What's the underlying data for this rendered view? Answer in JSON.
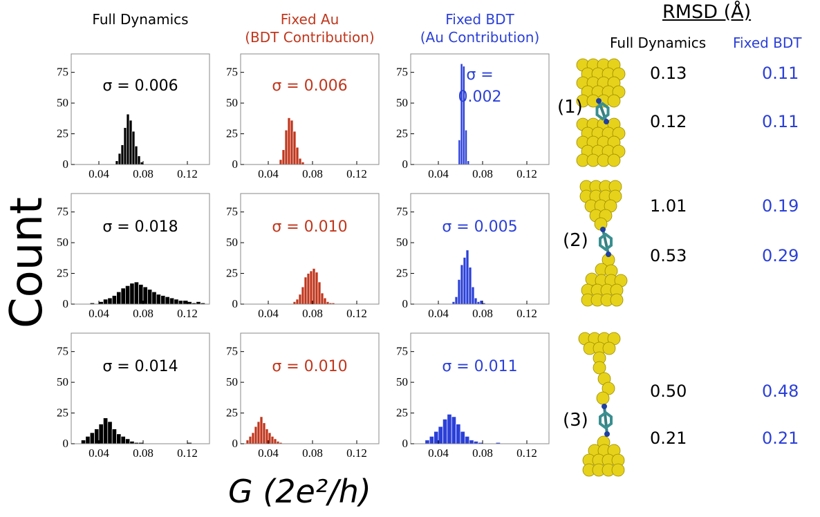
{
  "column_titles": [
    [
      "Full Dynamics"
    ],
    [
      "Fixed Au",
      "(BDT Contribution)"
    ],
    [
      "Fixed BDT",
      "(Au Contribution)"
    ]
  ],
  "y_label": "Count",
  "x_label": "G (2e²/h)",
  "rmsd": {
    "title": "RMSD (Å)",
    "columns": [
      "Full Dynamics",
      "Fixed BDT"
    ],
    "rows": [
      {
        "label": "(1)",
        "values": [
          [
            "0.13",
            "0.11"
          ],
          [
            "0.12",
            "0.11"
          ]
        ]
      },
      {
        "label": "(2)",
        "values": [
          [
            "1.01",
            "0.19"
          ],
          [
            "0.53",
            "0.29"
          ]
        ]
      },
      {
        "label": "(3)",
        "values": [
          [
            "0.50",
            "0.48"
          ],
          [
            "0.21",
            "0.21"
          ]
        ]
      }
    ]
  },
  "chart_data": [
    {
      "type": "histogram",
      "color": "#000000",
      "annotation": "σ = 0.006",
      "xlim": [
        0.015,
        0.14
      ],
      "ylim": [
        0,
        90
      ],
      "xticks": [
        0.04,
        0.08,
        0.12
      ],
      "yticks": [
        0,
        25,
        50,
        75
      ],
      "bins": [
        0.055,
        0.0575,
        0.06,
        0.0625,
        0.065,
        0.0675,
        0.07,
        0.0725,
        0.075,
        0.0775,
        0.08
      ],
      "values": [
        3,
        9,
        16,
        30,
        41,
        36,
        27,
        15,
        7,
        2
      ]
    },
    {
      "type": "histogram",
      "color": "#c0361c",
      "annotation": "σ = 0.006",
      "xlim": [
        0.015,
        0.14
      ],
      "ylim": [
        0,
        90
      ],
      "xticks": [
        0.04,
        0.08,
        0.12
      ],
      "yticks": [
        0,
        25,
        50,
        75
      ],
      "bins": [
        0.05,
        0.0525,
        0.055,
        0.0575,
        0.06,
        0.0625,
        0.065,
        0.0675,
        0.07,
        0.0725
      ],
      "values": [
        4,
        12,
        28,
        38,
        36,
        27,
        14,
        5,
        2
      ]
    },
    {
      "type": "histogram",
      "color": "#2b40d8",
      "annotation": "σ = 0.002",
      "xlim": [
        0.015,
        0.14
      ],
      "ylim": [
        0,
        90
      ],
      "xticks": [
        0.04,
        0.08,
        0.12
      ],
      "yticks": [
        0,
        25,
        50,
        75
      ],
      "bins": [
        0.058,
        0.06,
        0.062,
        0.064,
        0.066,
        0.068
      ],
      "values": [
        20,
        82,
        80,
        28,
        3
      ]
    },
    {
      "type": "histogram",
      "color": "#000000",
      "annotation": "σ = 0.018",
      "xlim": [
        0.015,
        0.14
      ],
      "ylim": [
        0,
        90
      ],
      "xticks": [
        0.04,
        0.08,
        0.12
      ],
      "yticks": [
        0,
        25,
        50,
        75
      ],
      "bins": [
        0.032,
        0.036,
        0.04,
        0.044,
        0.048,
        0.052,
        0.056,
        0.06,
        0.064,
        0.068,
        0.072,
        0.076,
        0.08,
        0.084,
        0.088,
        0.092,
        0.096,
        0.1,
        0.104,
        0.108,
        0.112,
        0.116,
        0.12,
        0.124,
        0.128,
        0.132,
        0.136
      ],
      "values": [
        1,
        0,
        2,
        4,
        5,
        7,
        10,
        13,
        15,
        17,
        18,
        16,
        14,
        12,
        10,
        8,
        7,
        6,
        5,
        4,
        3,
        3,
        2,
        1,
        2,
        1
      ]
    },
    {
      "type": "histogram",
      "color": "#c0361c",
      "annotation": "σ = 0.010",
      "xlim": [
        0.015,
        0.14
      ],
      "ylim": [
        0,
        90
      ],
      "xticks": [
        0.04,
        0.08,
        0.12
      ],
      "yticks": [
        0,
        25,
        50,
        75
      ],
      "bins": [
        0.0625,
        0.065,
        0.0675,
        0.07,
        0.0725,
        0.075,
        0.0775,
        0.08,
        0.0825,
        0.085,
        0.0875,
        0.09,
        0.0925,
        0.095,
        0.0975,
        0.1
      ],
      "values": [
        2,
        4,
        8,
        14,
        22,
        25,
        27,
        29,
        26,
        18,
        9,
        5,
        2,
        1,
        1
      ]
    },
    {
      "type": "histogram",
      "color": "#2b40d8",
      "annotation": "σ = 0.005",
      "xlim": [
        0.015,
        0.14
      ],
      "ylim": [
        0,
        90
      ],
      "xticks": [
        0.04,
        0.08,
        0.12
      ],
      "yticks": [
        0,
        25,
        50,
        75
      ],
      "bins": [
        0.0525,
        0.055,
        0.0575,
        0.06,
        0.0625,
        0.065,
        0.0675,
        0.07,
        0.0725,
        0.075,
        0.0775,
        0.08,
        0.0825
      ],
      "values": [
        2,
        6,
        20,
        32,
        38,
        44,
        30,
        14,
        5,
        2,
        3,
        1
      ]
    },
    {
      "type": "histogram",
      "color": "#000000",
      "annotation": "σ = 0.014",
      "xlim": [
        0.015,
        0.14
      ],
      "ylim": [
        0,
        90
      ],
      "xticks": [
        0.04,
        0.08,
        0.12
      ],
      "yticks": [
        0,
        25,
        50,
        75
      ],
      "bins": [
        0.024,
        0.028,
        0.032,
        0.036,
        0.04,
        0.044,
        0.048,
        0.052,
        0.056,
        0.06,
        0.064,
        0.068,
        0.072,
        0.076,
        0.08,
        0.084,
        0.088,
        0.092,
        0.096,
        0.1,
        0.104,
        0.108,
        0.112,
        0.116,
        0.12,
        0.124
      ],
      "values": [
        3,
        6,
        9,
        12,
        16,
        21,
        18,
        12,
        8,
        6,
        4,
        2,
        1,
        1,
        0,
        0,
        0,
        0,
        0,
        0,
        0,
        0,
        0,
        0,
        1
      ]
    },
    {
      "type": "histogram",
      "color": "#c0361c",
      "annotation": "σ = 0.010",
      "xlim": [
        0.015,
        0.14
      ],
      "ylim": [
        0,
        90
      ],
      "xticks": [
        0.04,
        0.08,
        0.12
      ],
      "yticks": [
        0,
        25,
        50,
        75
      ],
      "bins": [
        0.02,
        0.0225,
        0.025,
        0.0275,
        0.03,
        0.0325,
        0.035,
        0.0375,
        0.04,
        0.0425,
        0.045,
        0.0475,
        0.05,
        0.0525
      ],
      "values": [
        3,
        6,
        9,
        14,
        18,
        22,
        17,
        12,
        9,
        6,
        4,
        2,
        1
      ]
    },
    {
      "type": "histogram",
      "color": "#2b40d8",
      "annotation": "σ = 0.011",
      "xlim": [
        0.015,
        0.14
      ],
      "ylim": [
        0,
        90
      ],
      "xticks": [
        0.04,
        0.08,
        0.12
      ],
      "yticks": [
        0,
        25,
        50,
        75
      ],
      "bins": [
        0.028,
        0.032,
        0.036,
        0.04,
        0.044,
        0.048,
        0.052,
        0.056,
        0.06,
        0.064,
        0.068,
        0.072,
        0.076,
        0.08,
        0.084,
        0.088,
        0.092,
        0.096
      ],
      "values": [
        3,
        6,
        10,
        14,
        20,
        24,
        22,
        16,
        10,
        6,
        3,
        2,
        1,
        0,
        0,
        0,
        1
      ]
    }
  ]
}
